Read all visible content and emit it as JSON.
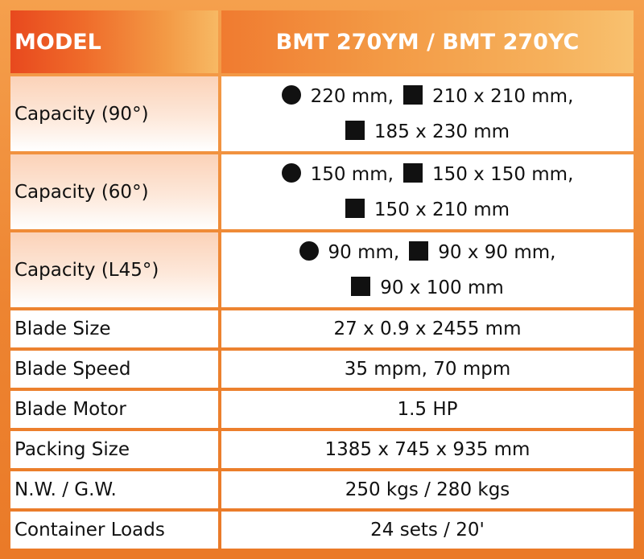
{
  "header": {
    "label": "MODEL",
    "value": "BMT 270YM / BMT 270YC"
  },
  "capacities": [
    {
      "label": "Capacity (90°)",
      "round": "220 mm,",
      "square": "210 x 210 mm,",
      "rect": "185 x 230 mm"
    },
    {
      "label": "Capacity (60°)",
      "round": "150 mm,",
      "square": "150 x 150 mm,",
      "rect": "150 x 210 mm"
    },
    {
      "label": "Capacity (L45°)",
      "round": "90 mm,",
      "square": "90 x 90 mm,",
      "rect": "90 x 100 mm"
    }
  ],
  "specs": [
    {
      "label": "Blade Size",
      "value": "27 x 0.9 x 2455 mm"
    },
    {
      "label": "Blade Speed",
      "value": "35 mpm, 70 mpm"
    },
    {
      "label": "Blade Motor",
      "value": "1.5 HP"
    },
    {
      "label": "Packing Size",
      "value": "1385 x 745 x 935 mm"
    },
    {
      "label": "N.W. / G.W.",
      "value": "250 kgs / 280 kgs"
    },
    {
      "label": "Container Loads",
      "value": "24 sets / 20'"
    }
  ],
  "icons": {
    "round": "filled-circle-icon",
    "square": "filled-square-icon"
  },
  "colors": {
    "border": "#ed8431",
    "header_text": "#ffffff",
    "text": "#111111"
  }
}
